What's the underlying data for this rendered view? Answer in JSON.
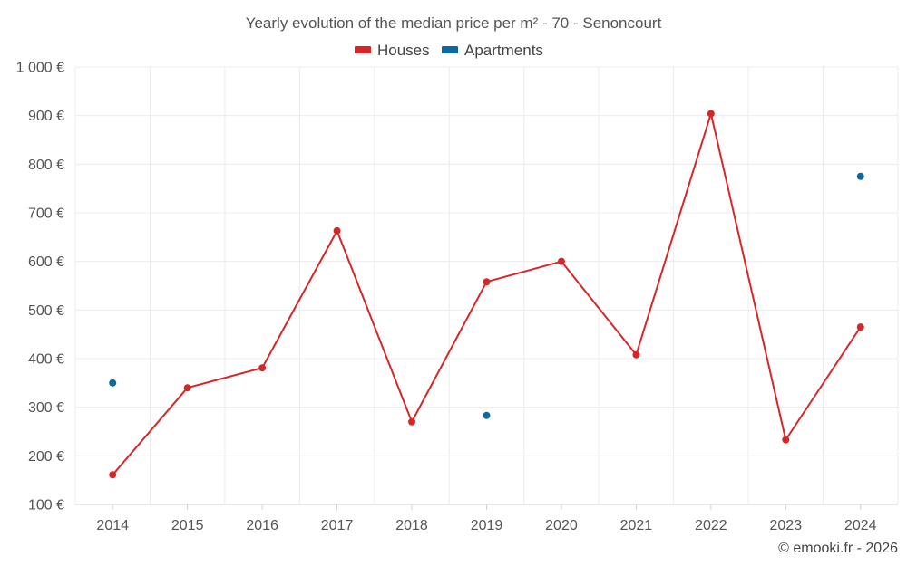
{
  "chart_data": {
    "type": "line",
    "title": "Yearly evolution of the median price per m² - 70 - Senoncourt",
    "categories": [
      "2014",
      "2015",
      "2016",
      "2017",
      "2018",
      "2019",
      "2020",
      "2021",
      "2022",
      "2023",
      "2024"
    ],
    "series": [
      {
        "name": "Houses",
        "color": "#d62728",
        "values": [
          161,
          340,
          381,
          663,
          270,
          558,
          600,
          408,
          904,
          233,
          465
        ]
      },
      {
        "name": "Apartments",
        "color": "#0a6aa1",
        "values": [
          350,
          null,
          null,
          null,
          null,
          283,
          null,
          null,
          null,
          null,
          775
        ]
      }
    ],
    "yticks": [
      "100 €",
      "200 €",
      "300 €",
      "400 €",
      "500 €",
      "600 €",
      "700 €",
      "800 €",
      "900 €",
      "1 000 €"
    ],
    "ylim": [
      100,
      1000
    ],
    "xlabel": "",
    "ylabel": "",
    "grid": true,
    "legend_position": "top-center"
  },
  "credit": "© emooki.fr - 2026"
}
